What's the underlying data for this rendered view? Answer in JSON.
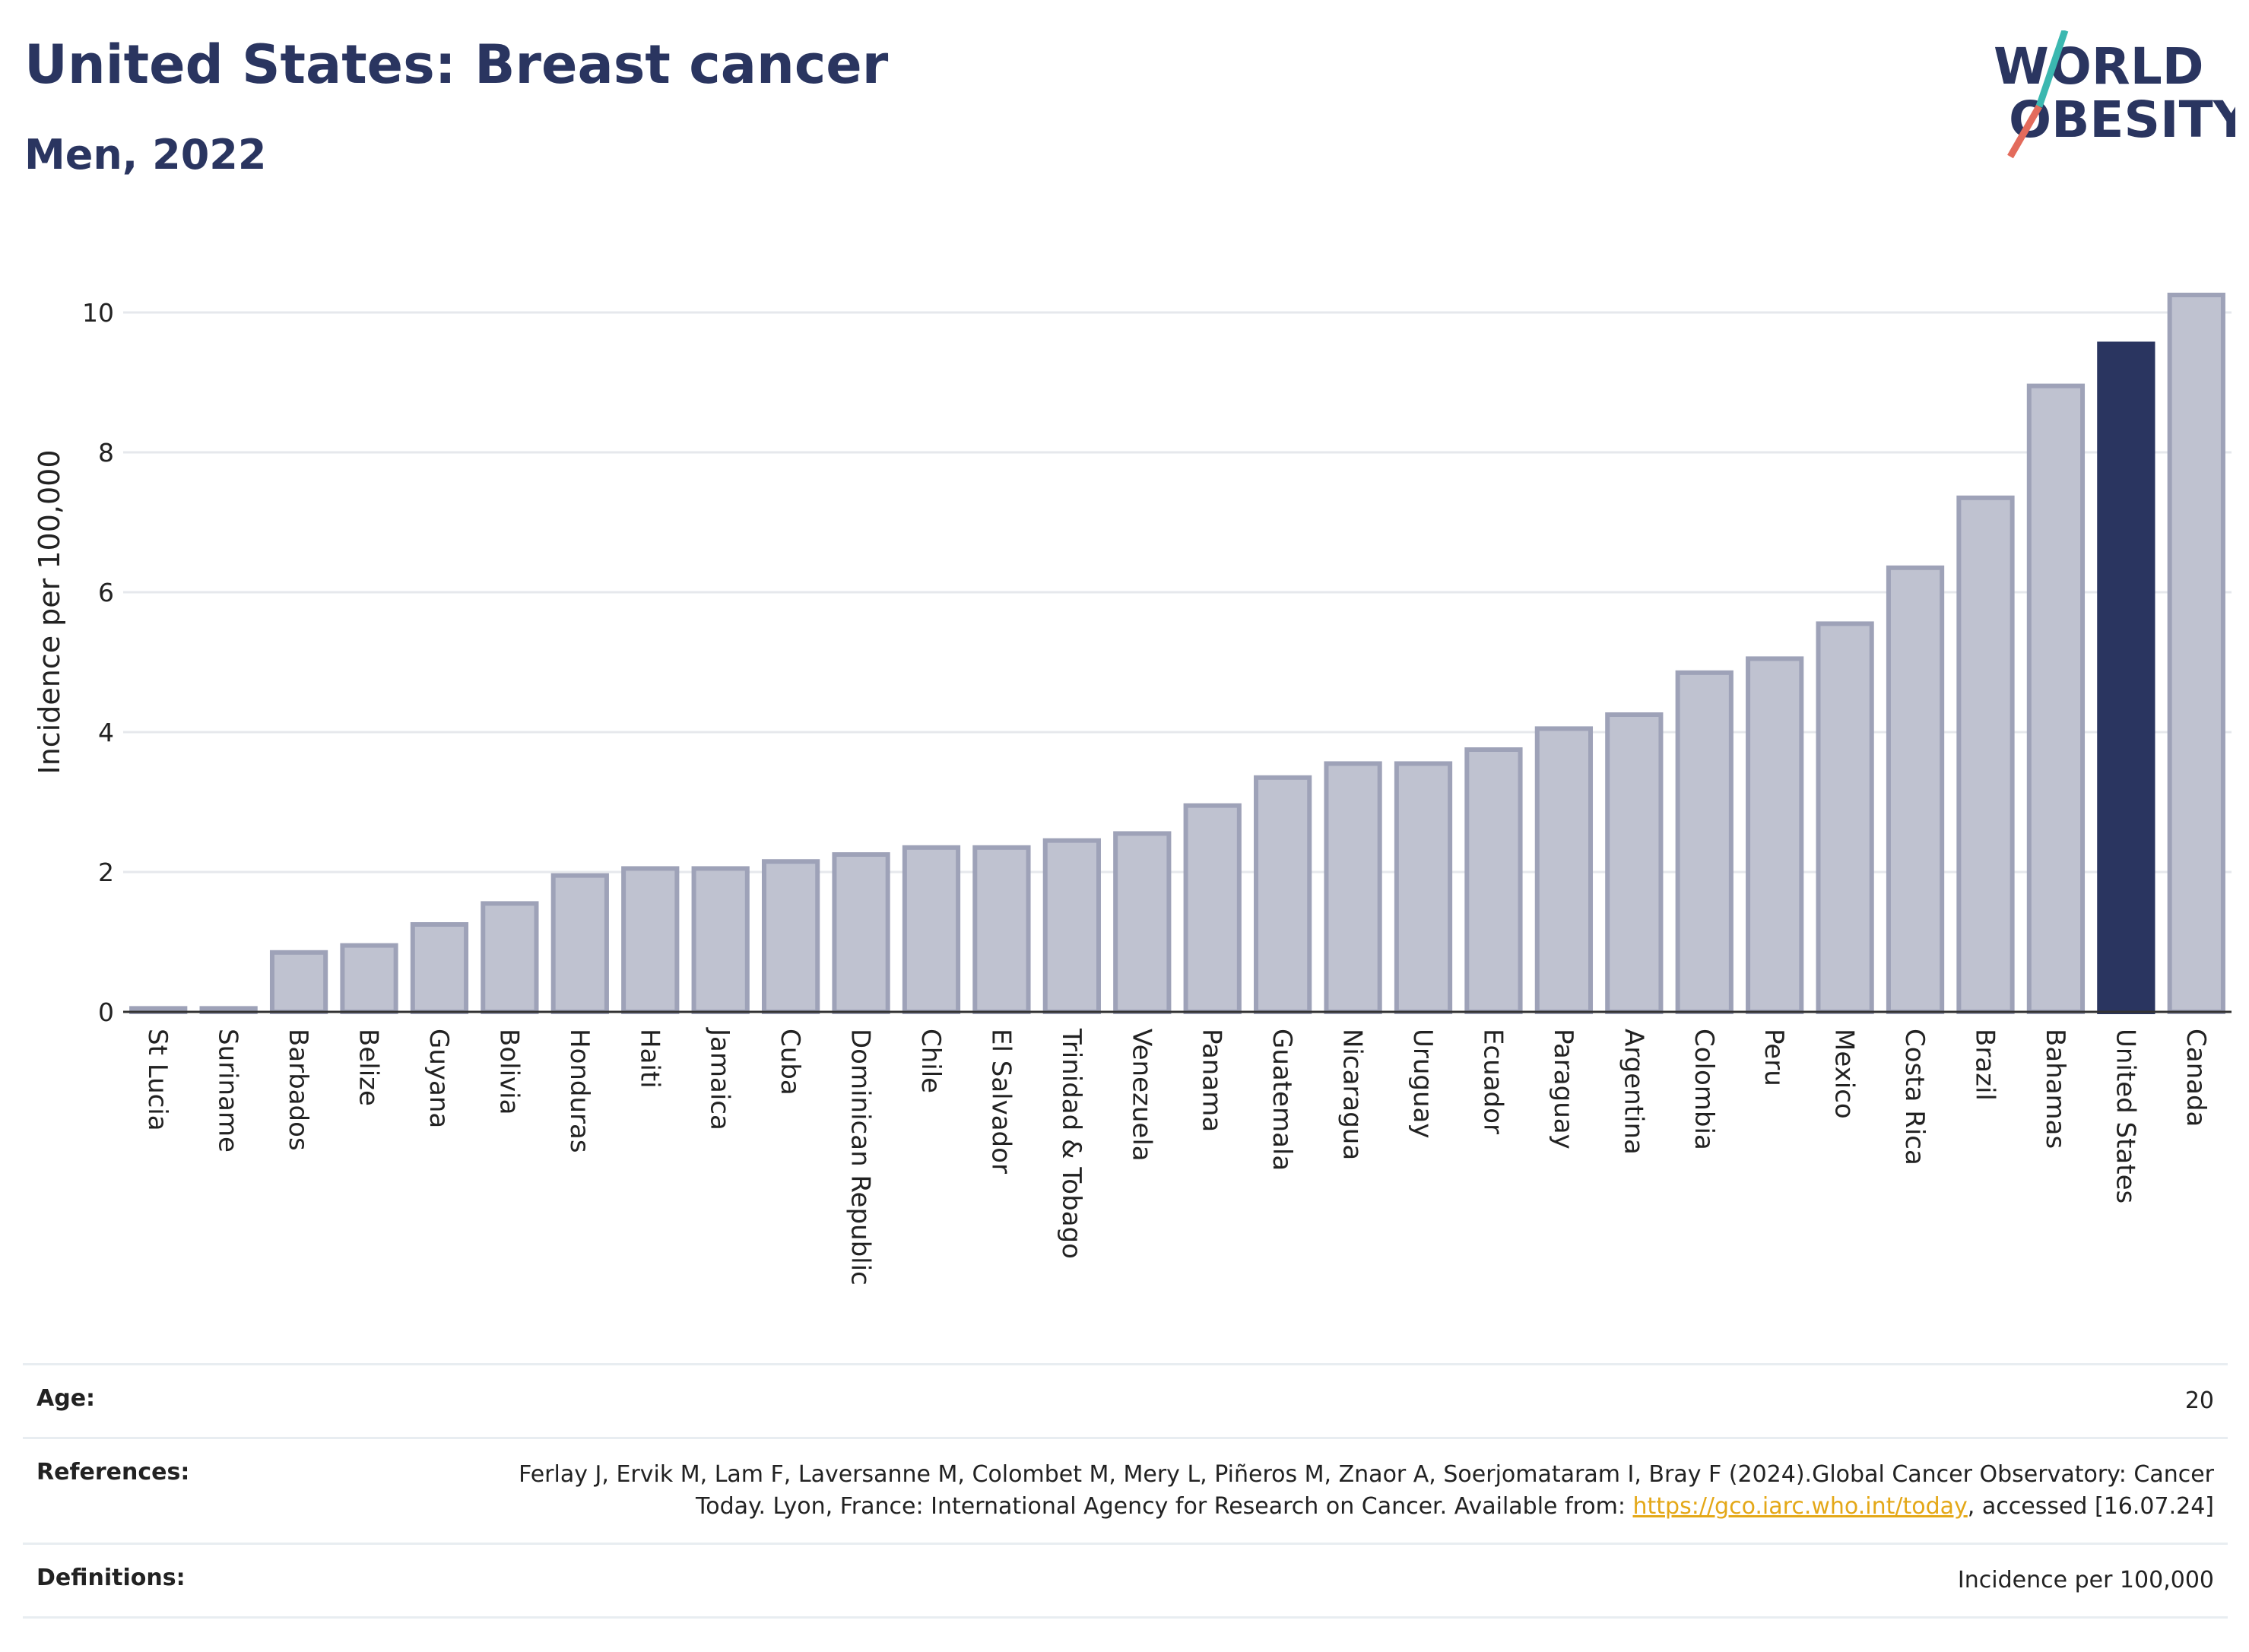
{
  "header": {
    "title": "United States: Breast cancer",
    "subtitle": "Men, 2022"
  },
  "logo": {
    "line1": "WORLD",
    "line2": "OBESITY"
  },
  "colors": {
    "highlight": "#2a3560",
    "bar_fill": "#bfc2d0",
    "bar_stroke": "#9ea2b8",
    "link": "#e4a818",
    "title": "#2a3560"
  },
  "chart_data": {
    "type": "bar",
    "ylabel": "Incidence per 100,000",
    "ylim": [
      0,
      10.5
    ],
    "yticks": [
      0,
      2,
      4,
      6,
      8,
      10
    ],
    "grid": true,
    "highlight": "United States",
    "categories": [
      "St Lucia",
      "Suriname",
      "Barbados",
      "Belize",
      "Guyana",
      "Bolivia",
      "Honduras",
      "Haiti",
      "Jamaica",
      "Cuba",
      "Dominican Republic",
      "Chile",
      "El Salvador",
      "Trinidad & Tobago",
      "Venezuela",
      "Panama",
      "Guatemala",
      "Nicaragua",
      "Uruguay",
      "Ecuador",
      "Paraguay",
      "Argentina",
      "Colombia",
      "Peru",
      "Mexico",
      "Costa Rica",
      "Brazil",
      "Bahamas",
      "United States",
      "Canada"
    ],
    "values": [
      0.05,
      0.05,
      0.85,
      0.95,
      1.25,
      1.55,
      1.95,
      2.05,
      2.05,
      2.15,
      2.25,
      2.35,
      2.35,
      2.45,
      2.55,
      2.95,
      3.35,
      3.55,
      3.55,
      3.75,
      4.05,
      4.25,
      4.85,
      5.05,
      5.55,
      6.35,
      7.35,
      8.95,
      9.55,
      10.25
    ]
  },
  "info": {
    "age_label": "Age:",
    "age_value": "20",
    "references_label": "References:",
    "references_text_1": "Ferlay J, Ervik M, Lam F, Laversanne M, Colombet M, Mery L, Piñeros M, Znaor A, Soerjomataram I, Bray F (2024).Global Cancer Observatory: Cancer Today. Lyon, France: International Agency for Research on Cancer. Available from: ",
    "references_link": "https://gco.iarc.who.int/today",
    "references_text_2": ", accessed [16.07.24]",
    "definitions_label": "Definitions:",
    "definitions_value": "Incidence per 100,000"
  }
}
